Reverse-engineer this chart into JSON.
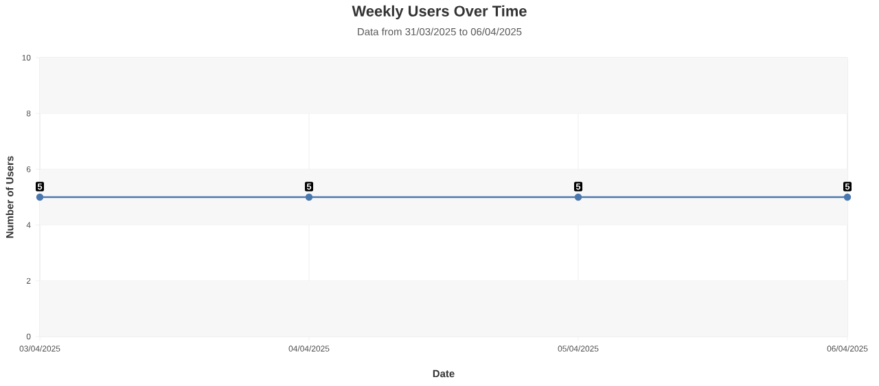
{
  "chart_data": {
    "type": "line",
    "title": "Weekly Users Over Time",
    "subtitle": "Data from 31/03/2025 to 06/04/2025",
    "xlabel": "Date",
    "ylabel": "Number of Users",
    "categories": [
      "03/04/2025",
      "04/04/2025",
      "05/04/2025",
      "06/04/2025"
    ],
    "series": [
      {
        "color": "#4a78ae",
        "values": [
          5,
          5,
          5,
          5
        ]
      }
    ],
    "ylim": [
      0,
      10
    ],
    "yticks": [
      0,
      2,
      4,
      6,
      8,
      10
    ],
    "bands": [
      {
        "axis": "y",
        "from": 0,
        "to": 2,
        "color": "#f7f7f7"
      },
      {
        "axis": "y",
        "from": 4,
        "to": 6,
        "color": "#f7f7f7"
      },
      {
        "axis": "y",
        "from": 8,
        "to": 10,
        "color": "#f7f7f7"
      }
    ],
    "grid": true,
    "data_labels": true,
    "marker": "circle",
    "line_style": "solid"
  }
}
